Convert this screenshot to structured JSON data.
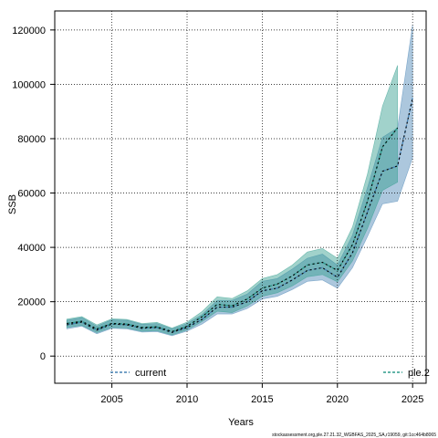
{
  "chart_data": {
    "type": "line",
    "xlabel": "Years",
    "ylabel": "SSB",
    "xlim": [
      2001.2,
      2025.9
    ],
    "ylim": [
      -10000,
      127000
    ],
    "x_ticks": [
      2005,
      2010,
      2015,
      2020,
      2025
    ],
    "y_ticks": [
      0,
      20000,
      40000,
      60000,
      80000,
      100000,
      120000
    ],
    "grid": true,
    "legend": [
      {
        "label": "current",
        "position": "bottom-left"
      },
      {
        "label": "ple.2",
        "position": "bottom-right"
      }
    ],
    "footer": "stockassessment.org,ple.27.21.32_WGBFAS_2025_SA,r19059, git:1cc464b8065",
    "series": [
      {
        "name": "current",
        "color": "#4682b4",
        "x": [
          2002,
          2003,
          2004,
          2005,
          2006,
          2007,
          2008,
          2009,
          2010,
          2011,
          2012,
          2013,
          2014,
          2015,
          2016,
          2017,
          2018,
          2019,
          2020,
          2021,
          2022,
          2023,
          2024,
          2025
        ],
        "y": [
          11500,
          12500,
          9500,
          11800,
          11500,
          10200,
          10500,
          8700,
          10500,
          13500,
          18000,
          18000,
          20000,
          24000,
          25000,
          28000,
          31500,
          32500,
          29000,
          38000,
          53000,
          68000,
          70000,
          95000
        ],
        "lower": [
          10000,
          11000,
          8200,
          10200,
          10000,
          8800,
          9000,
          7500,
          9200,
          11800,
          15500,
          15500,
          17500,
          21000,
          22000,
          24500,
          27500,
          28000,
          25000,
          32500,
          44000,
          56000,
          57000,
          73000
        ],
        "upper": [
          13200,
          14200,
          11000,
          13400,
          13200,
          11700,
          12000,
          10000,
          12000,
          15300,
          20500,
          20500,
          22800,
          27500,
          28500,
          32000,
          36000,
          37500,
          33500,
          44500,
          62000,
          80500,
          84000,
          122000
        ]
      },
      {
        "name": "ple.2",
        "color": "#2e9c8c",
        "x": [
          2002,
          2003,
          2004,
          2005,
          2006,
          2007,
          2008,
          2009,
          2010,
          2011,
          2012,
          2013,
          2014,
          2015,
          2016,
          2017,
          2018,
          2019,
          2020,
          2021,
          2022,
          2023,
          2024
        ],
        "y": [
          12000,
          12800,
          10000,
          12000,
          11800,
          10500,
          10800,
          9000,
          11000,
          14500,
          19000,
          18500,
          21000,
          25000,
          26500,
          29500,
          33500,
          34500,
          31500,
          41000,
          57000,
          77000,
          84000
        ],
        "lower": [
          10500,
          11300,
          8600,
          10500,
          10300,
          9100,
          9300,
          7800,
          9600,
          12700,
          16500,
          16000,
          18400,
          22000,
          23300,
          25800,
          29200,
          30000,
          27300,
          35000,
          47000,
          61000,
          64000
        ],
        "upper": [
          13600,
          14500,
          11500,
          13700,
          13500,
          12000,
          12400,
          10300,
          12500,
          16400,
          21800,
          21200,
          24000,
          28500,
          30000,
          33500,
          38300,
          39600,
          36000,
          47500,
          67000,
          92000,
          107000
        ]
      }
    ]
  }
}
